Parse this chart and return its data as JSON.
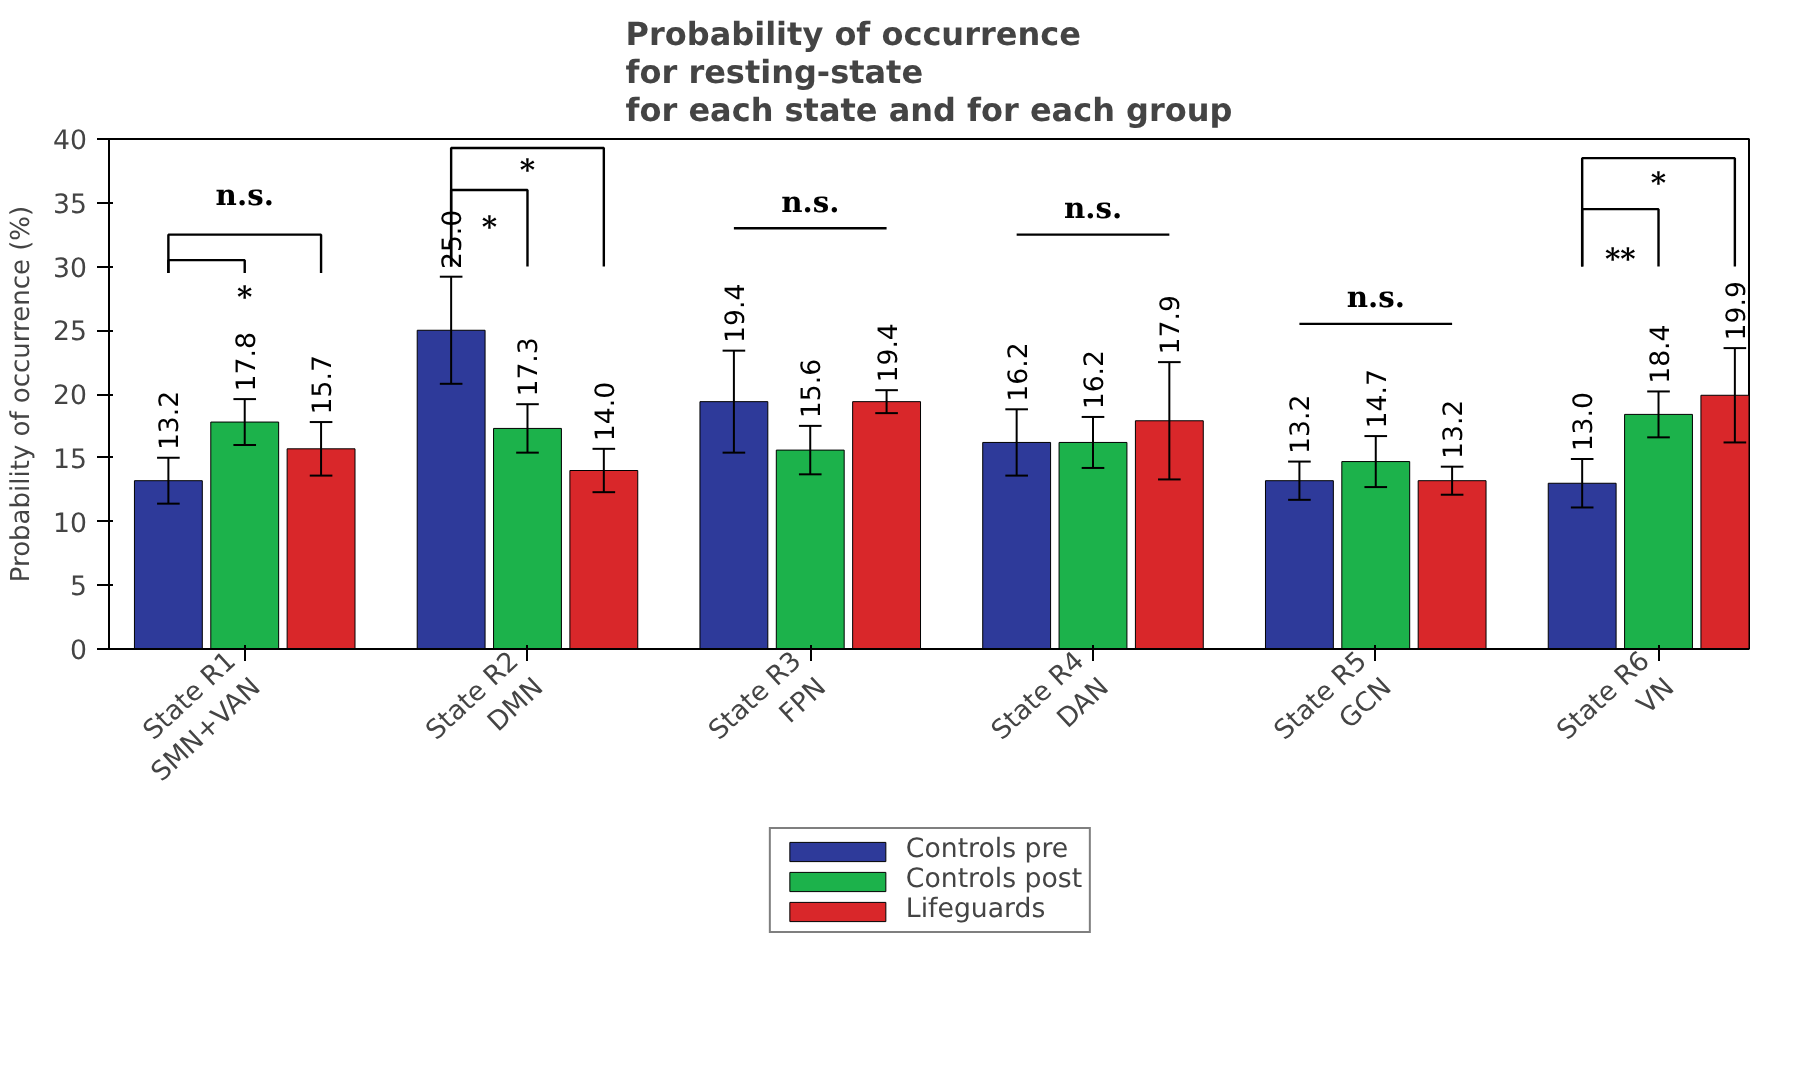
{
  "chart_data": {
    "type": "bar",
    "title": "Probability of occurrence\nfor resting-state\nfor each state and for each group",
    "ylabel": "Probability of occurrence (%)",
    "categories": [
      "State R1\nSMN+VAN",
      "State R2\nDMN",
      "State R3\nFPN",
      "State R4\nDAN",
      "State R5\nGCN",
      "State R6\nVN"
    ],
    "series": [
      {
        "name": "Controls pre",
        "color": "#2e3a9a",
        "values": [
          13.2,
          25.0,
          19.4,
          16.2,
          13.2,
          13.0
        ],
        "value_labels": [
          "13.2",
          "25.0",
          "19.4",
          "16.2",
          "13.2",
          "13.0"
        ],
        "errors": [
          1.8,
          4.2,
          4.0,
          2.6,
          1.5,
          1.9
        ]
      },
      {
        "name": "Controls post",
        "color": "#1cb24b",
        "values": [
          17.8,
          17.3,
          15.6,
          16.2,
          14.7,
          18.4
        ],
        "value_labels": [
          "17.8",
          "17.3",
          "15.6",
          "16.2",
          "14.7",
          "18.4"
        ],
        "errors": [
          1.8,
          1.9,
          1.9,
          2.0,
          2.0,
          1.8
        ]
      },
      {
        "name": "Lifeguards",
        "color": "#d9272a",
        "values": [
          15.7,
          14.0,
          19.4,
          17.9,
          13.2,
          19.9
        ],
        "value_labels": [
          "15.7",
          "14.0",
          "19.4",
          "17.9",
          "13.2",
          "19.9"
        ],
        "errors": [
          2.1,
          1.7,
          0.9,
          4.6,
          1.1,
          3.7
        ]
      }
    ],
    "ylim": [
      0,
      40
    ],
    "yticks": [
      0,
      5,
      10,
      15,
      20,
      25,
      30,
      35,
      40
    ],
    "grid": false,
    "legend": "bottom",
    "annotations": [
      "*",
      "n.s.",
      "*",
      "*",
      "n.s.",
      "n.s.",
      "n.s.",
      "**",
      "*"
    ]
  }
}
